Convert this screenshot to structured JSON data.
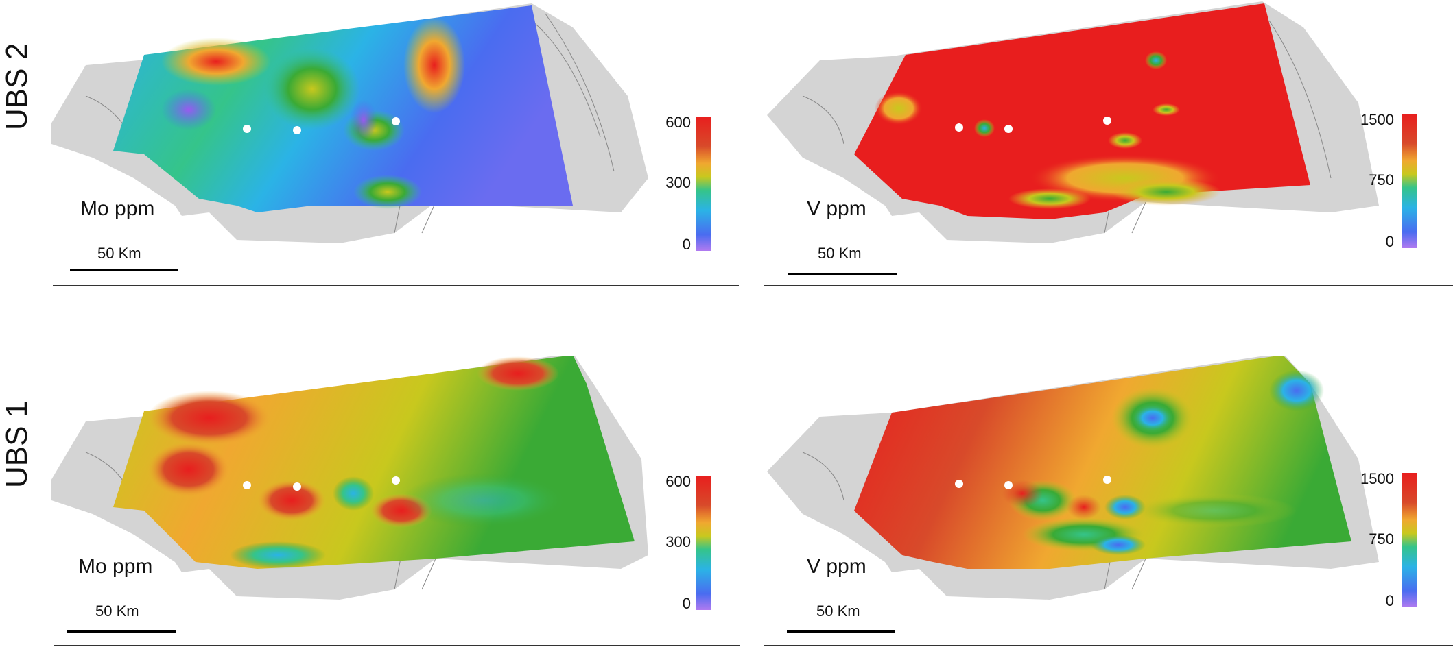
{
  "rows": {
    "top": {
      "label": "UBS 2"
    },
    "bottom": {
      "label": "UBS 1"
    }
  },
  "panels": {
    "mo_top": {
      "variable": "Mo ppm",
      "scale": "50 Km",
      "legend_ticks": [
        "600",
        "300",
        "0"
      ]
    },
    "v_top": {
      "variable": "V ppm",
      "scale": "50 Km",
      "legend_ticks": [
        "1500",
        "750",
        "0"
      ]
    },
    "mo_bottom": {
      "variable": "Mo ppm",
      "scale": "50 Km",
      "legend_ticks": [
        "600",
        "300",
        "0"
      ]
    },
    "v_bottom": {
      "variable": "V ppm",
      "scale": "50 Km",
      "legend_ticks": [
        "1500",
        "750",
        "0"
      ]
    }
  },
  "colormap": [
    "#9b59f0",
    "#4a6cf0",
    "#2bb3e6",
    "#35c48a",
    "#3aaa35",
    "#c8c81e",
    "#f0a830",
    "#d84a2a",
    "#e81e1e"
  ],
  "markers": {
    "color": "#ffffff",
    "count_per_panel": 3
  }
}
